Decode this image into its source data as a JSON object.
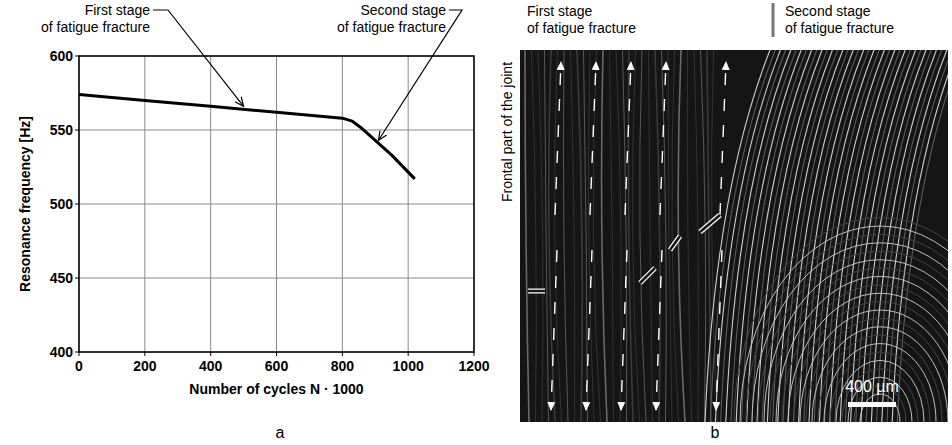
{
  "chart_data": {
    "type": "line",
    "panel_label": "a",
    "x_label": "Number of cycles N · 1000",
    "y_label": "Resonance frequency [Hz]",
    "x": [
      0,
      200,
      400,
      600,
      800,
      830,
      860,
      900,
      950,
      1020
    ],
    "values": [
      574,
      570,
      566,
      562,
      558,
      556,
      551,
      543,
      533,
      517
    ],
    "color": "#000000",
    "xlim": [
      0,
      1200
    ],
    "xticks": [
      0,
      200,
      400,
      600,
      800,
      1000,
      1200
    ],
    "ylim": [
      400,
      600
    ],
    "yticks": [
      400,
      450,
      500,
      550,
      600
    ],
    "grid": true,
    "annotations": [
      {
        "text": [
          "First stage",
          "of fatigue fracture"
        ],
        "x": 500,
        "y": 564
      },
      {
        "text": [
          "Second stage",
          "of fatigue fracture"
        ],
        "x": 910,
        "y": 541
      }
    ]
  },
  "micrograph": {
    "panel_label": "b",
    "top_labels": [
      [
        "First stage",
        "of fatigue fracture"
      ],
      [
        "Second stage",
        "of fatigue fracture"
      ]
    ],
    "side_label": "Frontal part of the joint",
    "scale_bar": "400 µm"
  }
}
